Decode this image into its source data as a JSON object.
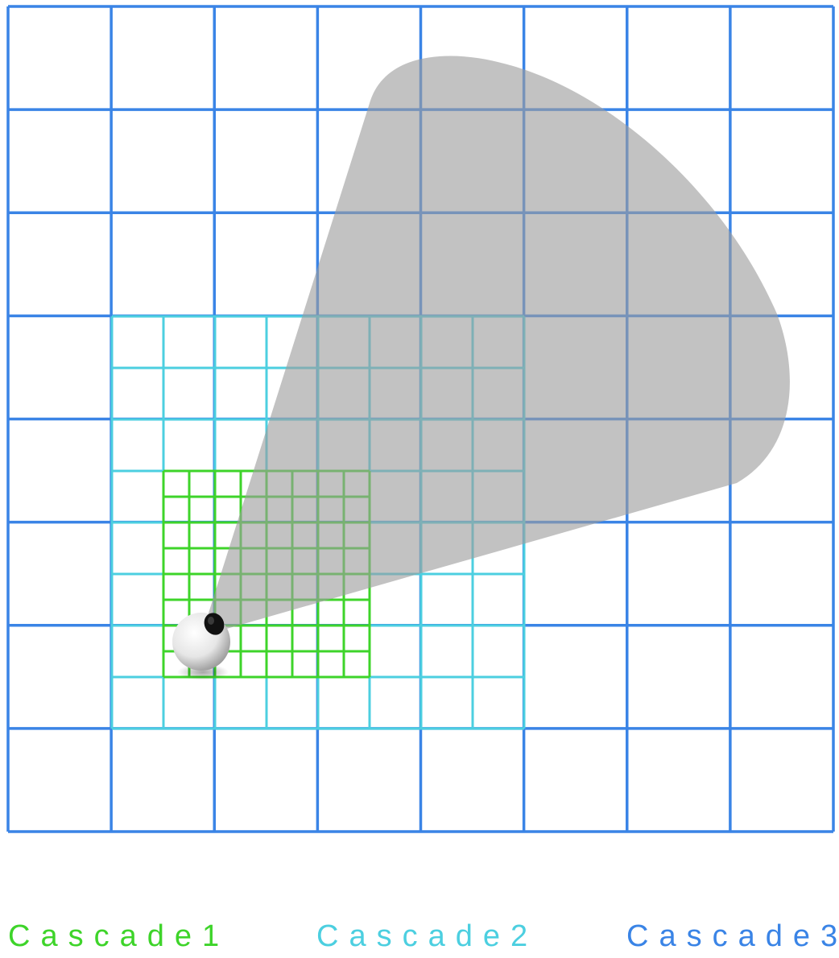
{
  "legend": {
    "cascade1": "Cascade1",
    "cascade2": "Cascade2",
    "cascade3": "Cascade3"
  },
  "cascades": [
    {
      "name": "Cascade1",
      "color": "#3ed42a",
      "cells_per_side": 8
    },
    {
      "name": "Cascade2",
      "color": "#4ccfe0",
      "cells_per_side": 8
    },
    {
      "name": "Cascade3",
      "color": "#3a84e6",
      "cells_per_side": 8
    }
  ],
  "colors": {
    "frustum": "#9c9c9c",
    "background": "#ffffff"
  },
  "icons": {
    "camera": "eye-icon"
  }
}
